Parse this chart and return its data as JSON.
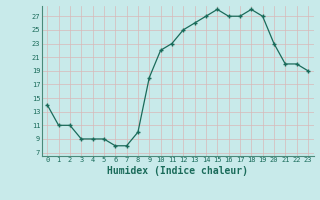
{
  "x": [
    0,
    1,
    2,
    3,
    4,
    5,
    6,
    7,
    8,
    9,
    10,
    11,
    12,
    13,
    14,
    15,
    16,
    17,
    18,
    19,
    20,
    21,
    22,
    23
  ],
  "y": [
    14,
    11,
    11,
    9,
    9,
    9,
    8,
    8,
    10,
    18,
    22,
    23,
    25,
    26,
    27,
    28,
    27,
    27,
    28,
    27,
    23,
    20,
    20,
    19
  ],
  "line_color": "#1a6b5a",
  "marker_color": "#1a6b5a",
  "bg_color": "#c8eaea",
  "grid_color": "#d8b8b8",
  "xlabel": "Humidex (Indice chaleur)",
  "xlabel_fontsize": 7,
  "ytick_values": [
    7,
    9,
    11,
    13,
    15,
    17,
    19,
    21,
    23,
    25,
    27
  ],
  "xtick_values": [
    0,
    1,
    2,
    3,
    4,
    5,
    6,
    7,
    8,
    9,
    10,
    11,
    12,
    13,
    14,
    15,
    16,
    17,
    18,
    19,
    20,
    21,
    22,
    23
  ],
  "ylim": [
    6.5,
    28.5
  ],
  "xlim": [
    -0.5,
    23.5
  ]
}
